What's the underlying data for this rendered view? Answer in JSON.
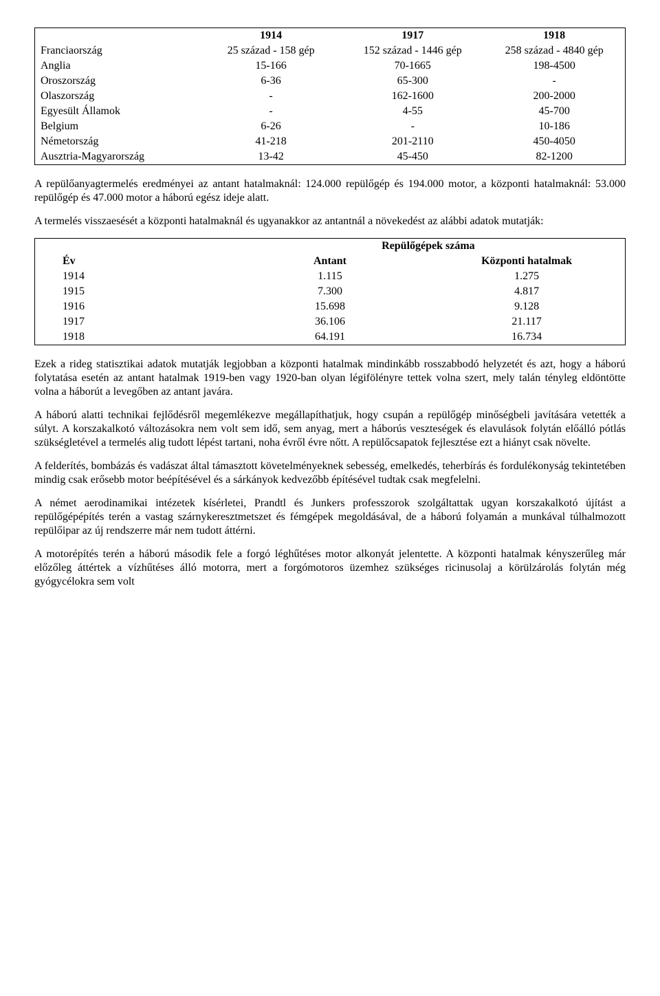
{
  "table1": {
    "headers": [
      "",
      "1914",
      "1917",
      "1918"
    ],
    "rows": [
      [
        "Franciaország",
        "25 század - 158 gép",
        "152 század - 1446 gép",
        "258 század - 4840 gép"
      ],
      [
        "Anglia",
        "15-166",
        "70-1665",
        "198-4500"
      ],
      [
        "Oroszország",
        "6-36",
        "65-300",
        "-"
      ],
      [
        "Olaszország",
        "-",
        "162-1600",
        "200-2000"
      ],
      [
        "Egyesült Államok",
        "-",
        "4-55",
        "45-700"
      ],
      [
        "Belgium",
        "6-26",
        "-",
        "10-186"
      ],
      [
        "Németország",
        "41-218",
        "201-2110",
        "450-4050"
      ],
      [
        "Ausztria-Magyarország",
        "13-42",
        "45-450",
        "82-1200"
      ]
    ]
  },
  "para1": "A repülőanyagtermelés eredményei az antant hatalmaknál: 124.000 repülőgép és 194.000 motor, a központi hatalmaknál: 53.000 repülőgép és 47.000 motor a háború egész ideje alatt.",
  "para2": "A termelés visszaesését a központi hatalmaknál és ugyanakkor az antantnál a növekedést az alábbi adatok mutatják:",
  "table2": {
    "title": "Repülőgépek száma",
    "headers": [
      "Év",
      "Antant",
      "Központi hatalmak"
    ],
    "rows": [
      [
        "1914",
        "1.115",
        "1.275"
      ],
      [
        "1915",
        "7.300",
        "4.817"
      ],
      [
        "1916",
        "15.698",
        "9.128"
      ],
      [
        "1917",
        "36.106",
        "21.117"
      ],
      [
        "1918",
        "64.191",
        "16.734"
      ]
    ]
  },
  "para3": "Ezek a rideg statisztikai adatok mutatják legjobban a központi hatalmak mindinkább rosszabbodó helyzetét és azt, hogy a háború folytatása esetén az antant hatalmak 1919-ben vagy 1920-ban olyan légifölényre tettek volna szert, mely talán tényleg eldöntötte volna a háborút a levegőben az antant javára.",
  "para4": "A háború alatti technikai fejlődésről megemlékezve megállapíthatjuk, hogy csupán a repülőgép minőségbeli javítására vetették a súlyt. A korszakalkotó változásokra nem volt sem idő, sem anyag, mert a háborús veszteségek és elavulások folytán előálló pótlás szükségletével a termelés alig tudott lépést tartani, noha évről évre nőtt. A repülőcsapatok fejlesztése ezt a hiányt csak növelte.",
  "para5": "A felderítés, bombázás és vadászat által támasztott követelményeknek sebesség, emelkedés, teherbírás és fordulékonyság tekintetében mindig csak erősebb motor beépítésével és a sárkányok kedvezőbb építésével tudtak csak megfelelni.",
  "para6": "A német aerodinamikai intézetek kísérletei, Prandtl és Junkers professzorok szolgáltattak ugyan korszakalkotó újítást a repülőgépépítés terén a vastag szárnykeresztmetszet és fémgépek megoldásával, de a háború folyamán a munkával túlhalmozott repülőipar az új rendszerre már nem tudott áttérni.",
  "para7": "A motorépítés terén a háború második fele a forgó léghűtéses motor alkonyát jelentette. A központi hatalmak kényszerűleg már előzőleg áttértek a vízhűtéses álló motorra, mert a forgómotoros üzemhez szükséges ricinusolaj a körülzárolás folytán még gyógycélokra sem volt"
}
